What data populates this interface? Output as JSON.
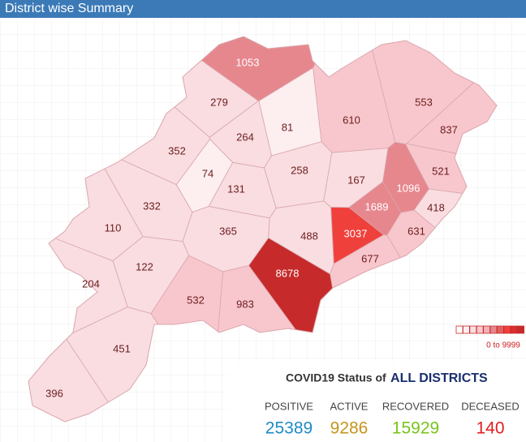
{
  "header": {
    "title": "District wise Summary"
  },
  "map": {
    "districts": [
      1053,
      279,
      553,
      610,
      81,
      264,
      837,
      352,
      74,
      258,
      167,
      521,
      1096,
      131,
      332,
      1689,
      418,
      110,
      365,
      488,
      3037,
      631,
      677,
      8678,
      122,
      204,
      532,
      983,
      451,
      396
    ],
    "legend": "0 to 9999"
  },
  "status": {
    "title_prefix": "COVID19 Status of",
    "title_highlight": "ALL DISTRICTS",
    "items": [
      {
        "label": "POSITIVE",
        "value": 25389,
        "color": "#1e8ac6"
      },
      {
        "label": "ACTIVE",
        "value": 9286,
        "color": "#c4951c"
      },
      {
        "label": "RECOVERED",
        "value": 15929,
        "color": "#78c41c"
      },
      {
        "label": "DECEASED",
        "value": 140,
        "color": "#e01e1e"
      }
    ]
  }
}
